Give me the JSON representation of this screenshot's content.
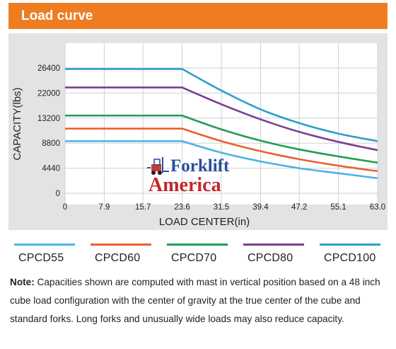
{
  "header": {
    "title": "Load curve"
  },
  "watermark": {
    "line1": "Forklift",
    "line2": "America",
    "icon": "forklift-icon"
  },
  "chart_data": {
    "type": "line",
    "title": "",
    "xlabel": "LOAD CENTER(in)",
    "ylabel": "CAPACITY(lbs)",
    "x_ticks": [
      "0",
      "7.9",
      "15.7",
      "23.6",
      "31.5",
      "39.4",
      "47.2",
      "55.1",
      "63.0"
    ],
    "y_ticks": [
      "0",
      "4440",
      "8800",
      "13200",
      "22000",
      "26400"
    ],
    "grid": true,
    "legend_position": "bottom",
    "series": [
      {
        "name": "CPCD55",
        "color": "#4cb3e3",
        "x": [
          0,
          23.6,
          31.5,
          39.4,
          47.2,
          55.1,
          63.0
        ],
        "y_level": [
          2.08,
          2.08,
          1.62,
          1.27,
          1.0,
          0.8,
          0.6
        ]
      },
      {
        "name": "CPCD60",
        "color": "#e8622e",
        "x": [
          0,
          23.6,
          31.5,
          39.4,
          47.2,
          55.1,
          63.0
        ],
        "y_level": [
          2.58,
          2.58,
          2.08,
          1.68,
          1.36,
          1.1,
          0.88
        ]
      },
      {
        "name": "CPCD70",
        "color": "#1f9e55",
        "x": [
          0,
          23.6,
          31.5,
          39.4,
          47.2,
          55.1,
          63.0
        ],
        "y_level": [
          3.1,
          3.1,
          2.55,
          2.1,
          1.75,
          1.47,
          1.22
        ]
      },
      {
        "name": "CPCD80",
        "color": "#7a3e8f",
        "x": [
          0,
          23.6,
          31.5,
          39.4,
          47.2,
          55.1,
          63.0
        ],
        "y_level": [
          4.22,
          4.22,
          3.55,
          2.95,
          2.45,
          2.05,
          1.72
        ]
      },
      {
        "name": "CPCD100",
        "color": "#2c9fc9",
        "x": [
          0,
          23.6,
          31.5,
          39.4,
          47.2,
          55.1,
          63.0
        ],
        "y_level": [
          4.96,
          4.96,
          4.1,
          3.35,
          2.8,
          2.38,
          2.08
        ]
      }
    ]
  },
  "legend": [
    {
      "label": "CPCD55",
      "color": "#4cb3e3"
    },
    {
      "label": "CPCD60",
      "color": "#e8622e"
    },
    {
      "label": "CPCD70",
      "color": "#1f9e55"
    },
    {
      "label": "CPCD80",
      "color": "#7a3e8f"
    },
    {
      "label": "CPCD100",
      "color": "#2c9fc9"
    }
  ],
  "note": {
    "label": "Note:",
    "text": " Capacities shown are computed with mast in vertical position based on a 48 inch cube load configuration with the center of gravity at the true center of the cube and standard forks. Long forks and unusually wide loads may also reduce capacity."
  }
}
